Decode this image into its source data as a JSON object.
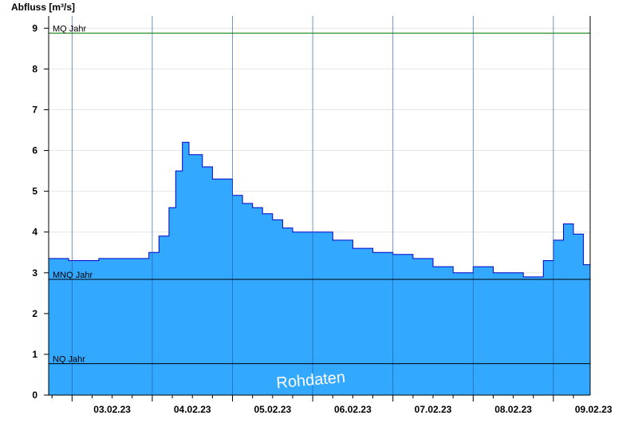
{
  "chart_data": {
    "type": "area",
    "ylabel": "Abfluss [m³/s]",
    "ylim": [
      0,
      9.3
    ],
    "yticks": [
      0,
      1,
      2,
      3,
      4,
      5,
      6,
      7,
      8,
      9
    ],
    "x_range": [
      "02.02.23 17:00",
      "09.02.23 11:00"
    ],
    "x_tick_labels": [
      "03.02.23",
      "04.02.23",
      "05.02.23",
      "06.02.23",
      "07.02.23",
      "08.02.23",
      "09.02.23"
    ],
    "day_boundaries": [
      "03.02.23 00:00",
      "04.02.23 00:00",
      "05.02.23 00:00",
      "06.02.23 00:00",
      "07.02.23 00:00",
      "08.02.23 00:00",
      "09.02.23 00:00"
    ],
    "grid": true,
    "reference_lines": [
      {
        "name": "MQ Jahr",
        "value": 8.88,
        "color": "#008000"
      },
      {
        "name": "MNQ Jahr",
        "value": 2.84,
        "color": "#000000"
      },
      {
        "name": "NQ Jahr",
        "value": 0.77,
        "color": "#000000"
      }
    ],
    "series": [
      {
        "color_fill": "#33a8ff",
        "color_line": "#0000cc",
        "x": [
          "02.02.23 17:00",
          "02.02.23 20:00",
          "02.02.23 23:00",
          "03.02.23 02:00",
          "03.02.23 05:00",
          "03.02.23 08:00",
          "03.02.23 11:00",
          "03.02.23 14:00",
          "03.02.23 17:00",
          "03.02.23 20:00",
          "03.02.23 23:00",
          "04.02.23 02:00",
          "04.02.23 05:00",
          "04.02.23 07:00",
          "04.02.23 09:00",
          "04.02.23 11:00",
          "04.02.23 13:00",
          "04.02.23 15:00",
          "04.02.23 18:00",
          "04.02.23 21:00",
          "05.02.23 00:00",
          "05.02.23 03:00",
          "05.02.23 06:00",
          "05.02.23 09:00",
          "05.02.23 12:00",
          "05.02.23 15:00",
          "05.02.23 18:00",
          "05.02.23 21:00",
          "06.02.23 00:00",
          "06.02.23 06:00",
          "06.02.23 12:00",
          "06.02.23 18:00",
          "07.02.23 00:00",
          "07.02.23 06:00",
          "07.02.23 12:00",
          "07.02.23 18:00",
          "08.02.23 00:00",
          "08.02.23 06:00",
          "08.02.23 12:00",
          "08.02.23 15:00",
          "08.02.23 18:00",
          "08.02.23 21:00",
          "09.02.23 00:00",
          "09.02.23 03:00",
          "09.02.23 06:00",
          "09.02.23 09:00",
          "09.02.23 11:00"
        ],
        "values": [
          3.35,
          3.35,
          3.3,
          3.3,
          3.3,
          3.35,
          3.35,
          3.35,
          3.35,
          3.35,
          3.5,
          3.9,
          4.6,
          5.5,
          6.2,
          5.9,
          5.9,
          5.6,
          5.3,
          5.3,
          4.9,
          4.7,
          4.6,
          4.45,
          4.3,
          4.1,
          4.0,
          4.0,
          4.0,
          3.8,
          3.6,
          3.5,
          3.45,
          3.35,
          3.15,
          3.0,
          3.15,
          3.0,
          3.0,
          2.9,
          2.9,
          3.3,
          3.8,
          4.2,
          3.95,
          3.2,
          2.9
        ]
      }
    ],
    "annotation": "Rohdaten"
  }
}
